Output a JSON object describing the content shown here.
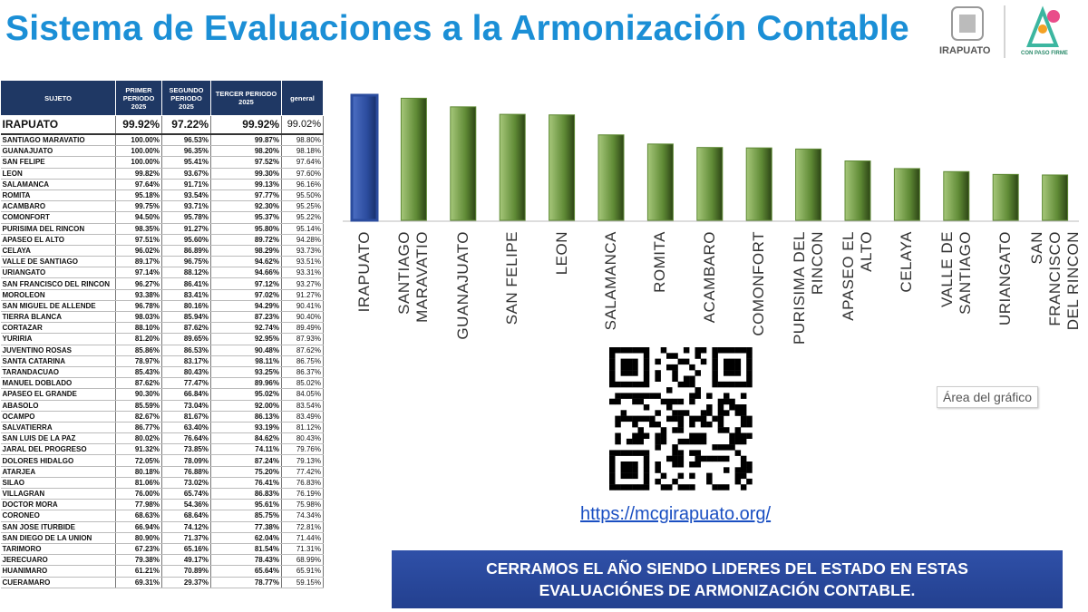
{
  "header": {
    "title": "Sistema de Evaluaciones a la Armonización Contable",
    "logo_left": "IRAPUATO",
    "logo_right": "CON PASO FIRME"
  },
  "table": {
    "header": [
      "SUJETO",
      "PRIMER PERIODO 2025",
      "SEGUNDO PERIODO 2025",
      "TERCER PERIODO 2025",
      "general"
    ],
    "rows": [
      [
        "IRAPUATO",
        "99.92%",
        "97.22%",
        "99.92%",
        "99.02%"
      ],
      [
        "SANTIAGO MARAVATIO",
        "100.00%",
        "96.53%",
        "99.87%",
        "98.80%"
      ],
      [
        "GUANAJUATO",
        "100.00%",
        "96.35%",
        "98.20%",
        "98.18%"
      ],
      [
        "SAN FELIPE",
        "100.00%",
        "95.41%",
        "97.52%",
        "97.64%"
      ],
      [
        "LEON",
        "99.82%",
        "93.67%",
        "99.30%",
        "97.60%"
      ],
      [
        "SALAMANCA",
        "97.64%",
        "91.71%",
        "99.13%",
        "96.16%"
      ],
      [
        "ROMITA",
        "95.18%",
        "93.54%",
        "97.77%",
        "95.50%"
      ],
      [
        "ACAMBARO",
        "99.75%",
        "93.71%",
        "92.30%",
        "95.25%"
      ],
      [
        "COMONFORT",
        "94.50%",
        "95.78%",
        "95.37%",
        "95.22%"
      ],
      [
        "PURISIMA DEL RINCON",
        "98.35%",
        "91.27%",
        "95.80%",
        "95.14%"
      ],
      [
        "APASEO EL ALTO",
        "97.51%",
        "95.60%",
        "89.72%",
        "94.28%"
      ],
      [
        "CELAYA",
        "96.02%",
        "86.89%",
        "98.29%",
        "93.73%"
      ],
      [
        "VALLE DE SANTIAGO",
        "89.17%",
        "96.75%",
        "94.62%",
        "93.51%"
      ],
      [
        "URIANGATO",
        "97.14%",
        "88.12%",
        "94.66%",
        "93.31%"
      ],
      [
        "SAN FRANCISCO DEL RINCON",
        "96.27%",
        "86.41%",
        "97.12%",
        "93.27%"
      ],
      [
        "MOROLEON",
        "93.38%",
        "83.41%",
        "97.02%",
        "91.27%"
      ],
      [
        "SAN MIGUEL DE ALLENDE",
        "96.78%",
        "80.16%",
        "94.29%",
        "90.41%"
      ],
      [
        "TIERRA BLANCA",
        "98.03%",
        "85.94%",
        "87.23%",
        "90.40%"
      ],
      [
        "CORTAZAR",
        "88.10%",
        "87.62%",
        "92.74%",
        "89.49%"
      ],
      [
        "YURIRIA",
        "81.20%",
        "89.65%",
        "92.95%",
        "87.93%"
      ],
      [
        "JUVENTINO ROSAS",
        "85.86%",
        "86.53%",
        "90.48%",
        "87.62%"
      ],
      [
        "SANTA CATARINA",
        "78.97%",
        "83.17%",
        "98.11%",
        "86.75%"
      ],
      [
        "TARANDACUAO",
        "85.43%",
        "80.43%",
        "93.25%",
        "86.37%"
      ],
      [
        "MANUEL DOBLADO",
        "87.62%",
        "77.47%",
        "89.96%",
        "85.02%"
      ],
      [
        "APASEO EL GRANDE",
        "90.30%",
        "66.84%",
        "95.02%",
        "84.05%"
      ],
      [
        "ABASOLO",
        "85.59%",
        "73.04%",
        "92.00%",
        "83.54%"
      ],
      [
        "OCAMPO",
        "82.67%",
        "81.67%",
        "86.13%",
        "83.49%"
      ],
      [
        "SALVATIERRA",
        "86.77%",
        "63.40%",
        "93.19%",
        "81.12%"
      ],
      [
        "SAN LUIS DE LA PAZ",
        "80.02%",
        "76.64%",
        "84.62%",
        "80.43%"
      ],
      [
        "JARAL DEL PROGRESO",
        "91.32%",
        "73.85%",
        "74.11%",
        "79.76%"
      ],
      [
        "DOLORES HIDALGO",
        "72.05%",
        "78.09%",
        "87.24%",
        "79.13%"
      ],
      [
        "ATARJEA",
        "80.18%",
        "76.88%",
        "75.20%",
        "77.42%"
      ],
      [
        "SILAO",
        "81.06%",
        "73.02%",
        "76.41%",
        "76.83%"
      ],
      [
        "VILLAGRAN",
        "76.00%",
        "65.74%",
        "86.83%",
        "76.19%"
      ],
      [
        "DOCTOR MORA",
        "77.98%",
        "54.36%",
        "95.61%",
        "75.98%"
      ],
      [
        "CORONEO",
        "68.63%",
        "68.64%",
        "85.75%",
        "74.34%"
      ],
      [
        "SAN JOSE ITURBIDE",
        "66.94%",
        "74.12%",
        "77.38%",
        "72.81%"
      ],
      [
        "SAN DIEGO DE LA UNION",
        "80.90%",
        "71.37%",
        "62.04%",
        "71.44%"
      ],
      [
        "TARIMORO",
        "67.23%",
        "65.16%",
        "81.54%",
        "71.31%"
      ],
      [
        "JERECUARO",
        "79.38%",
        "49.17%",
        "78.43%",
        "68.99%"
      ],
      [
        "HUANIMARO",
        "61.21%",
        "70.89%",
        "65.64%",
        "65.91%"
      ],
      [
        "CUERAMARO",
        "69.31%",
        "29.37%",
        "78.77%",
        "59.15%"
      ]
    ]
  },
  "chart_data": {
    "type": "bar",
    "categories": [
      "IRAPUATO",
      "SANTIAGO MARAVATIO",
      "GUANAJUATO",
      "SAN FELIPE",
      "LEON",
      "SALAMANCA",
      "ROMITA",
      "ACAMBARO",
      "COMONFORT",
      "PURISIMA DEL RINCON",
      "APASEO EL ALTO",
      "CELAYA",
      "VALLE DE SANTIAGO",
      "URIANGATO",
      "SAN FRANCISCO DEL RINCON"
    ],
    "values": [
      99.02,
      98.8,
      98.18,
      97.64,
      97.6,
      96.16,
      95.5,
      95.25,
      95.22,
      95.14,
      94.28,
      93.73,
      93.51,
      93.31,
      93.27
    ],
    "colors": [
      "#2b4c9e",
      "#5f8a35",
      "#5f8a35",
      "#5f8a35",
      "#5f8a35",
      "#5f8a35",
      "#5f8a35",
      "#5f8a35",
      "#5f8a35",
      "#5f8a35",
      "#5f8a35",
      "#5f8a35",
      "#5f8a35",
      "#5f8a35",
      "#5f8a35"
    ],
    "ylim": [
      90,
      100
    ]
  },
  "qr": {
    "link": "https://mcgirapuato.org/"
  },
  "tooltip": "Área del gráfico",
  "banner": "CERRAMOS EL AÑO SIENDO LIDERES DEL ESTADO EN ESTAS EVALUACIÓNES DE ARMONIZACIÓN CONTABLE."
}
